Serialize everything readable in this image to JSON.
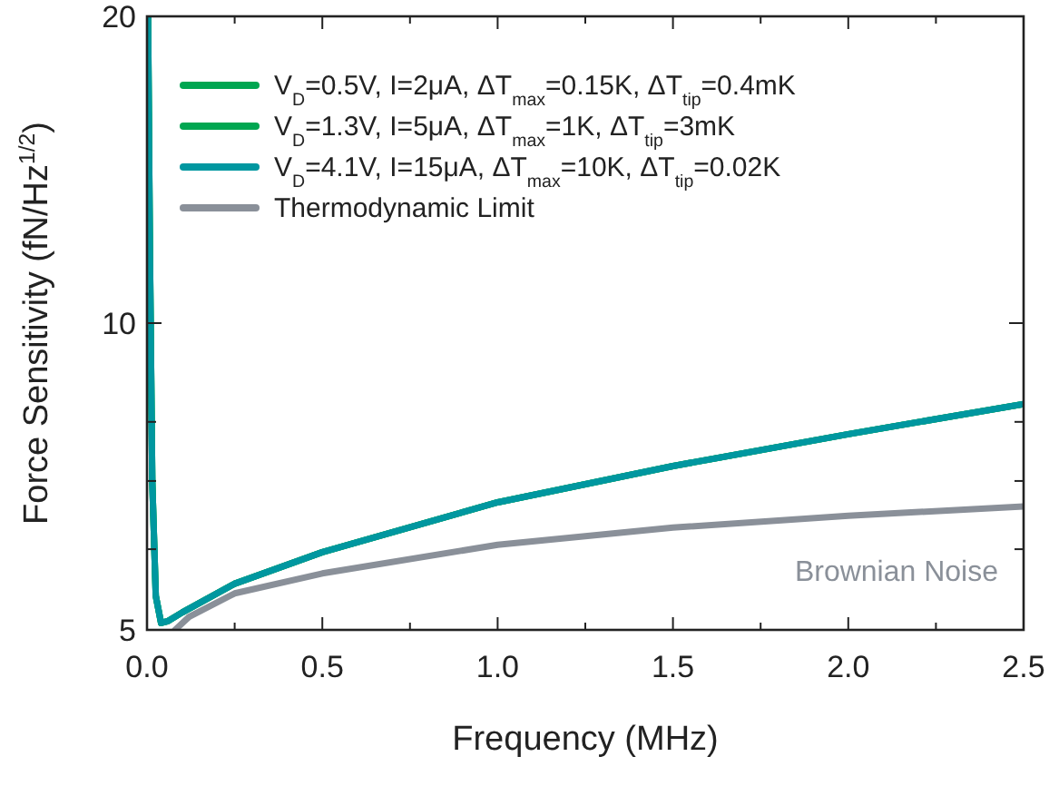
{
  "chart_data": {
    "type": "line",
    "xlabel": "Frequency (MHz)",
    "ylabel": "Force Sensitivity (fN/Hz$^{1/2}$)",
    "xlim": [
      0,
      2.5
    ],
    "ylim": [
      5,
      20
    ],
    "log": "y",
    "xticks": [
      {
        "value": 0,
        "label": "0.0"
      },
      {
        "value": 0.25,
        "label": null
      },
      {
        "value": 0.5,
        "label": "0.5"
      },
      {
        "value": 0.75,
        "label": null
      },
      {
        "value": 1,
        "label": "1.0"
      },
      {
        "value": 1.25,
        "label": null
      },
      {
        "value": 1.5,
        "label": "1.5"
      },
      {
        "value": 1.75,
        "label": null
      },
      {
        "value": 2,
        "label": "2.0"
      },
      {
        "value": 2.25,
        "label": null
      },
      {
        "value": 2.5,
        "label": "2.5"
      }
    ],
    "yticks": [
      5,
      {
        "value": 6,
        "label": null
      },
      {
        "value": 7,
        "label": null
      },
      {
        "value": 8,
        "label": null
      },
      10,
      20
    ],
    "legend": "top left",
    "grid": false,
    "series": [
      {
        "name": "V$_{D}$=0.5V,  I=2μA,  ΔT$_{max}$=0.15K,  ΔT$_{tip}$=0.4mK",
        "color": "#00a651",
        "x": [
          0.003,
          0.008,
          0.015,
          0.025,
          0.04,
          0.06,
          0.1,
          0.25,
          0.5,
          1.0,
          1.5,
          2.0,
          2.5
        ],
        "values": [
          20,
          12,
          7,
          5.4,
          5.08,
          5.1,
          5.2,
          5.55,
          5.96,
          6.67,
          7.24,
          7.78,
          8.33
        ]
      },
      {
        "name": "V$_{D}$=1.3V,  I=5μA,  ΔT$_{max}$=1K,  ΔT$_{tip}$=3mK",
        "color": "#00a651",
        "x": [
          0.003,
          0.008,
          0.015,
          0.025,
          0.04,
          0.06,
          0.1,
          0.25,
          0.5,
          1.0,
          1.5,
          2.0,
          2.5
        ],
        "values": [
          20,
          12,
          7,
          5.4,
          5.08,
          5.1,
          5.2,
          5.55,
          5.96,
          6.67,
          7.24,
          7.78,
          8.33
        ]
      },
      {
        "name": "V$_{D}$=4.1V,  I=15μA,  ΔT$_{max}$=10K,  ΔT$_{tip}$=0.02K",
        "color": "#0097a0",
        "x": [
          0.003,
          0.008,
          0.015,
          0.025,
          0.04,
          0.06,
          0.1,
          0.25,
          0.5,
          1.0,
          1.5,
          2.0,
          2.5
        ],
        "values": [
          20,
          12,
          7,
          5.4,
          5.08,
          5.1,
          5.2,
          5.55,
          5.96,
          6.67,
          7.24,
          7.78,
          8.33
        ]
      },
      {
        "name": "Thermodynamic Limit",
        "color": "#8a9099",
        "x": [
          0.08,
          0.12,
          0.25,
          0.5,
          1.0,
          1.5,
          2.0,
          2.5
        ],
        "values": [
          5,
          5.15,
          5.43,
          5.68,
          6.06,
          6.3,
          6.47,
          6.61
        ]
      }
    ],
    "annotations": [
      "Brownian Noise"
    ]
  }
}
